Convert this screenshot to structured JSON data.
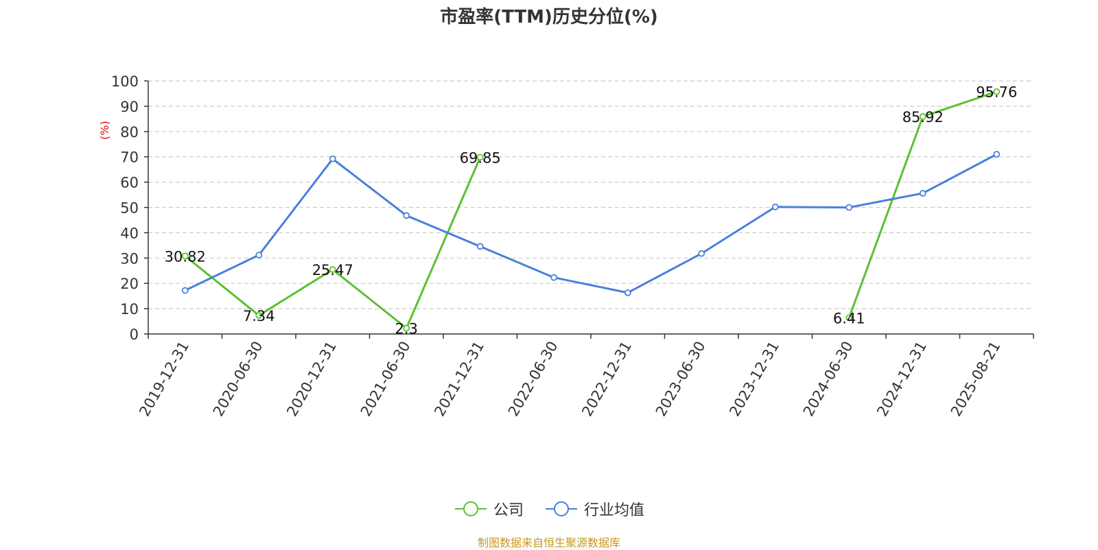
{
  "title": "市盈率(TTM)历史分位(%)",
  "source": "制图数据来自恒生聚源数据库",
  "colors": {
    "company": "#5ac12f",
    "industry": "#4a7fdb",
    "ylabel": "#e60000",
    "grid": "#cccccc",
    "axis": "#333333",
    "source": "#c8961e"
  },
  "chart_data": {
    "type": "line",
    "title": "市盈率(TTM)历史分位(%)",
    "ylabel": "(%)",
    "xlabel": "",
    "ylim": [
      0,
      100
    ],
    "yticks": [
      0,
      10,
      20,
      30,
      40,
      50,
      60,
      70,
      80,
      90,
      100
    ],
    "grid": true,
    "legend_position": "bottom",
    "categories": [
      "2019-12-31",
      "2020-06-30",
      "2020-12-31",
      "2021-06-30",
      "2021-12-31",
      "2022-06-30",
      "2022-12-31",
      "2023-06-30",
      "2023-12-31",
      "2024-06-30",
      "2024-12-31",
      "2025-08-21"
    ],
    "series": [
      {
        "name": "公司",
        "color": "#5ac12f",
        "show_labels": true,
        "values": [
          30.82,
          7.34,
          25.47,
          2.3,
          69.85,
          null,
          null,
          null,
          null,
          6.41,
          85.92,
          95.76
        ],
        "labels": [
          "30.82",
          "7.34",
          "25.47",
          "2.3",
          "69.85",
          null,
          null,
          null,
          null,
          "6.41",
          "85.92",
          "95.76"
        ]
      },
      {
        "name": "行业均值",
        "color": "#4a7fdb",
        "show_labels": false,
        "values": [
          17.2,
          31.2,
          69.2,
          46.8,
          34.6,
          22.3,
          16.3,
          31.8,
          50.2,
          50.0,
          55.6,
          71.0
        ]
      }
    ]
  }
}
